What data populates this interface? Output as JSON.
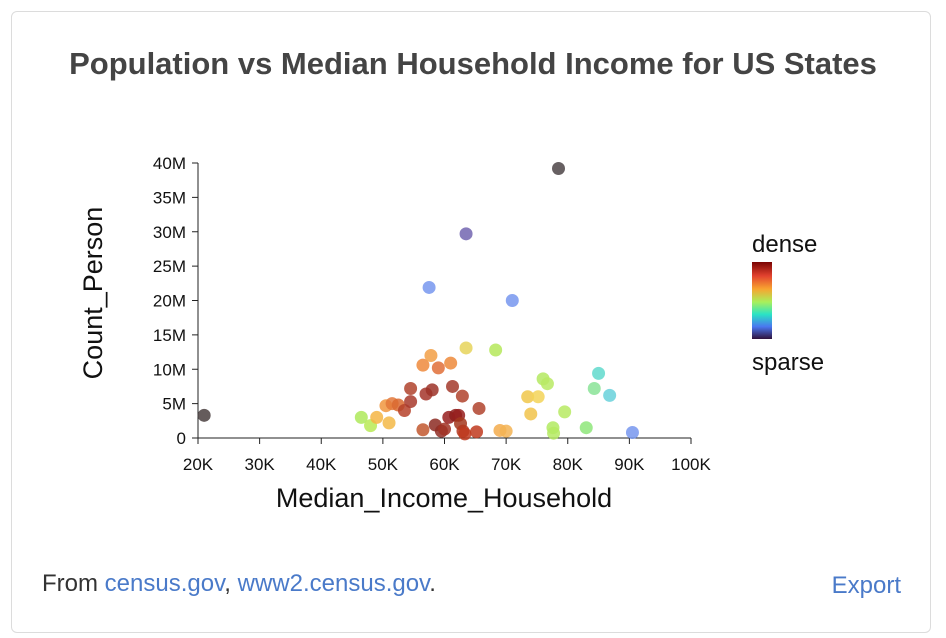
{
  "chart_data": {
    "type": "scatter",
    "title": "Population vs Median Household Income for US States",
    "xlabel": "Median_Income_Household",
    "ylabel": "Count_Person",
    "xlim": [
      20000,
      100000
    ],
    "ylim": [
      0,
      40000000
    ],
    "x_ticks": [
      "20K",
      "30K",
      "40K",
      "50K",
      "60K",
      "70K",
      "80K",
      "90K",
      "100K"
    ],
    "y_ticks": [
      "0",
      "5M",
      "10M",
      "15M",
      "20M",
      "25M",
      "30M",
      "35M",
      "40M"
    ],
    "legend": {
      "title_top": "dense",
      "title_bottom": "sparse",
      "placement": "right"
    },
    "points": [
      {
        "x": 21000,
        "y": 3300000,
        "color": "#4a4040"
      },
      {
        "x": 46500,
        "y": 3000000,
        "color": "#aee95a"
      },
      {
        "x": 48000,
        "y": 1800000,
        "color": "#b9ea55"
      },
      {
        "x": 49000,
        "y": 3000000,
        "color": "#f5b543"
      },
      {
        "x": 50500,
        "y": 4700000,
        "color": "#f0973e"
      },
      {
        "x": 51000,
        "y": 2200000,
        "color": "#f3b947"
      },
      {
        "x": 51500,
        "y": 5000000,
        "color": "#e3783a"
      },
      {
        "x": 52500,
        "y": 4800000,
        "color": "#d9682f"
      },
      {
        "x": 53500,
        "y": 4000000,
        "color": "#b6422a"
      },
      {
        "x": 54500,
        "y": 5300000,
        "color": "#a83a2c"
      },
      {
        "x": 54500,
        "y": 7200000,
        "color": "#b0432d"
      },
      {
        "x": 56500,
        "y": 10600000,
        "color": "#ee8a3c"
      },
      {
        "x": 56500,
        "y": 1200000,
        "color": "#c2582f"
      },
      {
        "x": 57000,
        "y": 6400000,
        "color": "#a5352a"
      },
      {
        "x": 57800,
        "y": 12000000,
        "color": "#f29f45"
      },
      {
        "x": 58000,
        "y": 7000000,
        "color": "#9c3228"
      },
      {
        "x": 58500,
        "y": 1900000,
        "color": "#8c2a22"
      },
      {
        "x": 59000,
        "y": 10200000,
        "color": "#e06f37"
      },
      {
        "x": 59500,
        "y": 1000000,
        "color": "#902d25"
      },
      {
        "x": 60000,
        "y": 1300000,
        "color": "#a13324"
      },
      {
        "x": 60700,
        "y": 3000000,
        "color": "#961f1d"
      },
      {
        "x": 61000,
        "y": 10900000,
        "color": "#ed8a3b"
      },
      {
        "x": 61300,
        "y": 7500000,
        "color": "#a33a2c"
      },
      {
        "x": 61800,
        "y": 3300000,
        "color": "#8d1e1c"
      },
      {
        "x": 62300,
        "y": 3300000,
        "color": "#961f1d"
      },
      {
        "x": 62600,
        "y": 2100000,
        "color": "#a3381e"
      },
      {
        "x": 62900,
        "y": 6100000,
        "color": "#b0432d"
      },
      {
        "x": 63000,
        "y": 1000000,
        "color": "#b3371e"
      },
      {
        "x": 63300,
        "y": 600000,
        "color": "#c03a1f"
      },
      {
        "x": 63500,
        "y": 13100000,
        "color": "#e6d45a"
      },
      {
        "x": 65200,
        "y": 900000,
        "color": "#c03a1f"
      },
      {
        "x": 65600,
        "y": 4300000,
        "color": "#b0432d"
      },
      {
        "x": 68300,
        "y": 12800000,
        "color": "#b5e75b"
      },
      {
        "x": 69000,
        "y": 1100000,
        "color": "#f3ab4c"
      },
      {
        "x": 70000,
        "y": 1000000,
        "color": "#f3b353"
      },
      {
        "x": 73500,
        "y": 6000000,
        "color": "#f0c74a"
      },
      {
        "x": 74000,
        "y": 3500000,
        "color": "#f1c34b"
      },
      {
        "x": 75200,
        "y": 6000000,
        "color": "#f3d358"
      },
      {
        "x": 76000,
        "y": 8600000,
        "color": "#b4e962"
      },
      {
        "x": 76700,
        "y": 7900000,
        "color": "#b9ea64"
      },
      {
        "x": 77600,
        "y": 1500000,
        "color": "#b1ea62"
      },
      {
        "x": 77700,
        "y": 700000,
        "color": "#b5ea61"
      },
      {
        "x": 79500,
        "y": 3800000,
        "color": "#b7ea63"
      },
      {
        "x": 83000,
        "y": 1500000,
        "color": "#8ee67a"
      },
      {
        "x": 84300,
        "y": 7200000,
        "color": "#89e396"
      },
      {
        "x": 85000,
        "y": 9400000,
        "color": "#60d9cd"
      },
      {
        "x": 86800,
        "y": 6200000,
        "color": "#69d1da"
      },
      {
        "x": 90500,
        "y": 800000,
        "color": "#7797ef"
      },
      {
        "x": 57500,
        "y": 21900000,
        "color": "#7797ef"
      },
      {
        "x": 71000,
        "y": 20000000,
        "color": "#7797ef"
      },
      {
        "x": 63500,
        "y": 29700000,
        "color": "#7265b0"
      },
      {
        "x": 78500,
        "y": 39200000,
        "color": "#4c4446"
      }
    ]
  },
  "footer": {
    "prefix": "From ",
    "link1": "census.gov",
    "sep": ", ",
    "link2": "www2.census.gov",
    "suffix": ".",
    "export": "Export"
  }
}
